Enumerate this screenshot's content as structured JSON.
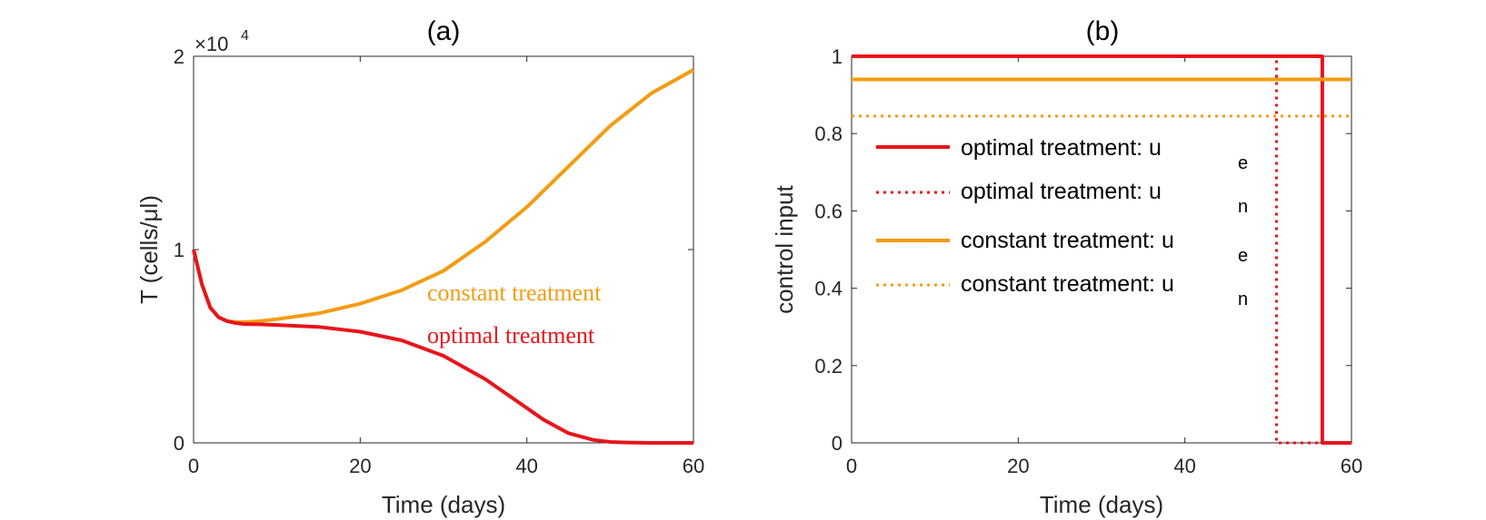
{
  "chart_data": [
    {
      "type": "line",
      "title": "(a)",
      "xlabel": "Time (days)",
      "ylabel": "T (cells/μl)",
      "xlim": [
        0,
        60
      ],
      "ylim": [
        0,
        2
      ],
      "xticks": [
        "0",
        "20",
        "40",
        "60"
      ],
      "yticks": [
        "0",
        "1",
        "2"
      ],
      "y_exponent": {
        "base": "×10",
        "power": "4"
      },
      "grid": false,
      "series": [
        {
          "name": "constant treatment",
          "color": "#f39c12",
          "style": "solid",
          "x": [
            0,
            1,
            2,
            3,
            4,
            5,
            6,
            8,
            10,
            15,
            20,
            25,
            30,
            35,
            40,
            45,
            50,
            55,
            60
          ],
          "values": [
            1.0,
            0.82,
            0.7,
            0.65,
            0.63,
            0.625,
            0.625,
            0.63,
            0.64,
            0.67,
            0.72,
            0.79,
            0.89,
            1.04,
            1.22,
            1.43,
            1.64,
            1.81,
            1.93
          ]
        },
        {
          "name": "optimal treatment",
          "color": "#e8141a",
          "style": "solid",
          "x": [
            0,
            1,
            2,
            3,
            4,
            5,
            6,
            8,
            10,
            15,
            20,
            25,
            30,
            35,
            38,
            40,
            42,
            45,
            48,
            50,
            52,
            55,
            60
          ],
          "values": [
            1.0,
            0.82,
            0.7,
            0.65,
            0.63,
            0.62,
            0.615,
            0.613,
            0.61,
            0.6,
            0.575,
            0.53,
            0.45,
            0.33,
            0.24,
            0.18,
            0.12,
            0.05,
            0.015,
            0.005,
            0.002,
            0.0,
            0.0
          ]
        }
      ],
      "annotations": [
        {
          "text": "constant treatment",
          "color": "#f39c12"
        },
        {
          "text": "optimal treatment",
          "color": "#e8141a"
        }
      ]
    },
    {
      "type": "line",
      "title": "(b)",
      "xlabel": "Time (days)",
      "ylabel": "control input",
      "xlim": [
        0,
        60
      ],
      "ylim": [
        0,
        1
      ],
      "xticks": [
        "0",
        "20",
        "40",
        "60"
      ],
      "yticks": [
        "0",
        "0.2",
        "0.4",
        "0.6",
        "0.8",
        "1"
      ],
      "grid": false,
      "series": [
        {
          "name": "optimal treatment: u",
          "sub": "e",
          "color": "#e8141a",
          "style": "solid",
          "x": [
            0,
            56.5,
            56.5,
            60
          ],
          "values": [
            1,
            1,
            0,
            0
          ]
        },
        {
          "name": "optimal treatment: u",
          "sub": "n",
          "color": "#e8141a",
          "style": "dotted",
          "x": [
            0,
            51,
            51,
            60
          ],
          "values": [
            1,
            1,
            0,
            0
          ]
        },
        {
          "name": "constant treatment: u",
          "sub": "e",
          "color": "#f39c12",
          "style": "solid",
          "x": [
            0,
            60
          ],
          "values": [
            0.94,
            0.94
          ]
        },
        {
          "name": "constant treatment: u",
          "sub": "n",
          "color": "#f39c12",
          "style": "dotted",
          "x": [
            0,
            60
          ],
          "values": [
            0.845,
            0.845
          ]
        }
      ],
      "legend_position": "center-left"
    }
  ]
}
